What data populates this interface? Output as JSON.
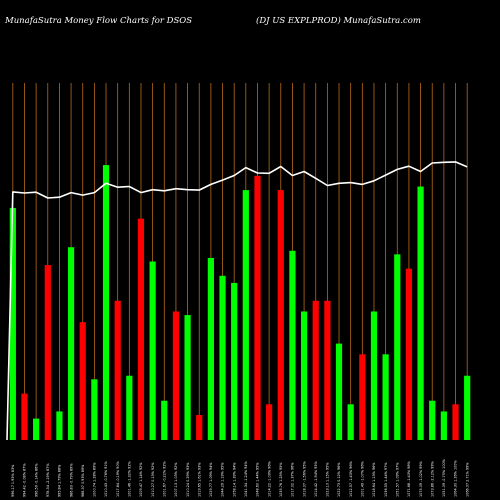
{
  "header": {
    "left": "MunafaSutra  Money Flow  Charts for DSOS",
    "right": "(DJ US EXPLPROD) MunafaSutra.com"
  },
  "chart_data": {
    "type": "bar",
    "title": "MunafaSutra  Money Flow  Charts for DSOS",
    "subtitle": "(DJ US EXPLPROD) MunafaSutra.com",
    "categories": [
      "996.17 1.95% 83%",
      "994.42 -0.08% 87%",
      "996.59 -0.14% 86%",
      "978.34 -2.19% 87%",
      "995.84 1.79% 88%",
      "986.83 -0.79% 89%",
      "988.37 0.93% 89%",
      "1000.74 1.28% 89%",
      "1010.43 -0.76% 91%",
      "1017.84 -0.19% 90%",
      "1001.46 -1.32% 92%",
      "1009.47 1.14% 92%",
      "1010.27 0.13% 92%",
      "1001.67 -0.22% 92%",
      "1007.13 1.03% 92%",
      "1010.24 0.29% 93%",
      "1019.65 1.61% 93%",
      "1029.77 1.09% 94%",
      "1044.29 1.19% 95%",
      "1058.14 1.39% 94%",
      "1041.34 -1.24% 94%",
      "1048.60 1.44% 95%",
      "1014.22 -1.09% 96%",
      "1035.76 1.25% 95%",
      "1017.02 1.37% 96%",
      "1018.07 -1.56% 95%",
      "1014.42 -1.94% 95%",
      "1023.10 1.15% 95%",
      "1022.73 0.12% 96%",
      "1012.57 -1.43% 96%",
      "1001.49 -1.07% 96%",
      "1018.64 1.13% 96%",
      "1036.55 1.44% 97%",
      "1051.57 1.09% 97%",
      "1071.68 -1.43% 98%",
      "1075.09 -1.02% 99%",
      "1073.86 -2.12% 99%",
      "1051.09 -0.75% 100%",
      "1064.30 1.26% 100%",
      "1066.07 2.71% 99%"
    ],
    "values": [
      65,
      13,
      6,
      49,
      8,
      54,
      33,
      17,
      77,
      39,
      18,
      62,
      50,
      11,
      36,
      35,
      7,
      51,
      46,
      44,
      70,
      74,
      10,
      70,
      53,
      36,
      39,
      39,
      27,
      10,
      24,
      36,
      24,
      52,
      48,
      71,
      11,
      8,
      10,
      18
    ],
    "directions": [
      "up",
      "down",
      "up",
      "down",
      "up",
      "up",
      "down",
      "up",
      "up",
      "down",
      "up",
      "down",
      "up",
      "up",
      "down",
      "up",
      "down",
      "up",
      "up",
      "up",
      "up",
      "down",
      "down",
      "down",
      "up",
      "up",
      "down",
      "down",
      "up",
      "up",
      "down",
      "up",
      "up",
      "up",
      "down",
      "up",
      "up",
      "up",
      "down",
      "up"
    ],
    "line": [
      69.5,
      69.2,
      69.4,
      67.8,
      68.0,
      69.3,
      68.6,
      69.3,
      71.9,
      70.8,
      71.0,
      69.3,
      70.1,
      69.8,
      70.4,
      70.1,
      70.0,
      71.6,
      72.8,
      74.1,
      76.3,
      74.8,
      74.7,
      76.6,
      74.1,
      75.2,
      73.3,
      71.3,
      71.9,
      72.1,
      71.6,
      72.6,
      74.2,
      75.8,
      76.7,
      75.2,
      77.6,
      77.8,
      77.9,
      76.5
    ],
    "ylim": [
      0,
      100
    ],
    "colors": {
      "background": "#000000",
      "up": "#00ff00",
      "down": "#ff0000",
      "line": "#ffffff",
      "grid": "#b86a1a"
    }
  }
}
